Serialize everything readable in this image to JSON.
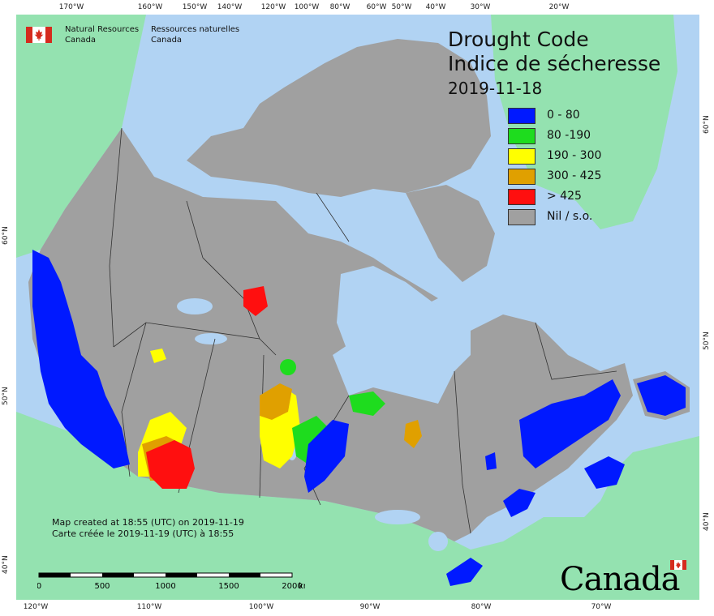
{
  "agency": {
    "name_en_line1": "Natural Resources",
    "name_en_line2": "Canada",
    "name_fr_line1": "Ressources naturelles",
    "name_fr_line2": "Canada"
  },
  "title": {
    "en": "Drought Code",
    "fr": "Indice de sécheresse",
    "date": "2019-11-18"
  },
  "legend": [
    {
      "label": "0 - 80",
      "color": "#0019ff"
    },
    {
      "label": "80 -190",
      "color": "#1edc1e"
    },
    {
      "label": "190 - 300",
      "color": "#ffff00"
    },
    {
      "label": "300 - 425",
      "color": "#e0a000"
    },
    {
      "label": "> 425",
      "color": "#ff0f0f"
    },
    {
      "label": "Nil / s.o.",
      "color": "#a0a0a0"
    }
  ],
  "colors": {
    "water": "#b1d3f3",
    "foreign_land": "#94e2b0",
    "canada_nil": "#a0a0a0",
    "boundary": "#333333"
  },
  "graticule": {
    "top": [
      "170°W",
      "160°W",
      "150°W",
      "140°W",
      "120°W",
      "100°W",
      "80°W",
      "60°W",
      "50°W",
      "40°W",
      "30°W",
      "20°W"
    ],
    "bottom": [
      "120°W",
      "110°W",
      "100°W",
      "90°W",
      "80°W",
      "70°W"
    ],
    "left": [
      "60°N",
      "50°N",
      "40°N"
    ],
    "right": [
      "60°N",
      "50°N",
      "40°N"
    ]
  },
  "created": {
    "en": "Map created at 18:55 (UTC) on 2019-11-19",
    "fr": "Carte créée le 2019-11-19 (UTC) à 18:55"
  },
  "scale": {
    "labels": [
      "0",
      "500",
      "1000",
      "1500",
      "2000"
    ],
    "unit": "km"
  },
  "wordmark": "Canada"
}
